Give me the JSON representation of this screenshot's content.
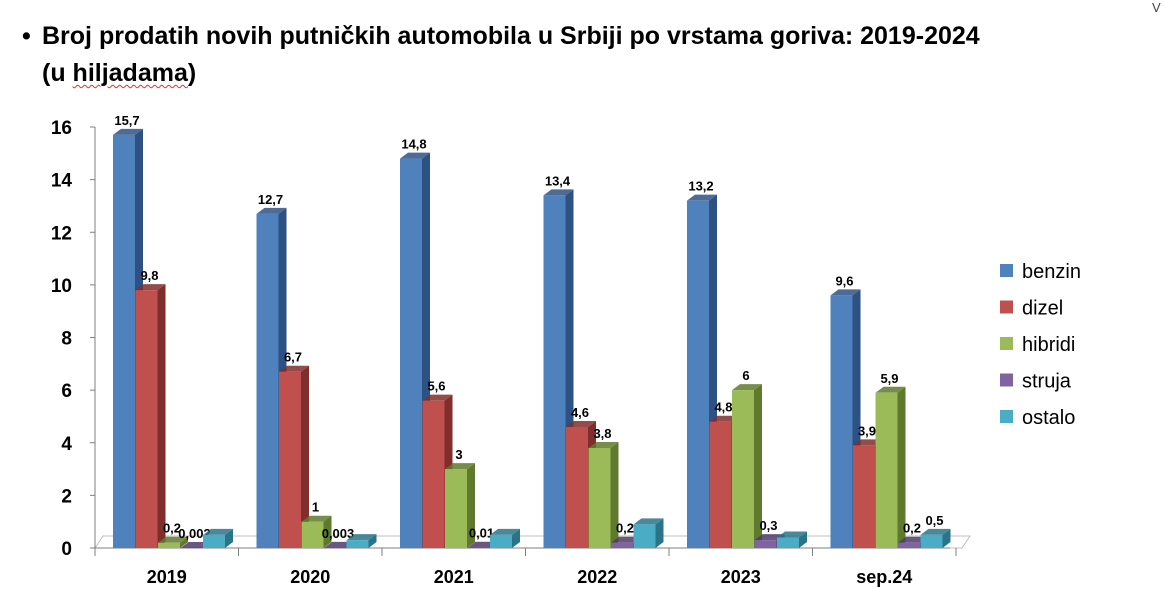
{
  "title": {
    "bullet": "•",
    "line1": "Broj prodatih novih putničkih automobila u Srbiji po vrstama goriva:  2019-2024",
    "line2_open": "(u ",
    "line2_word": "hiljadama",
    "line2_close": ")"
  },
  "corner_mark": "V",
  "chart_data": {
    "type": "bar",
    "title": "Broj prodatih novih putničkih automobila u Srbiji po vrstama goriva: 2019-2024 (u hiljadama)",
    "xlabel": "",
    "ylabel": "",
    "ylim": [
      0,
      16
    ],
    "yticks": [
      "0",
      "2",
      "4",
      "6",
      "8",
      "10",
      "12",
      "14",
      "16"
    ],
    "categories": [
      "2019",
      "2020",
      "2021",
      "2022",
      "2023",
      "sep.24"
    ],
    "legend_position": "right",
    "grid": false,
    "series": [
      {
        "name": "benzin",
        "color": "#4F81BD",
        "dark": "#2E5183",
        "values": [
          15.7,
          12.7,
          14.8,
          13.4,
          13.2,
          9.6
        ],
        "labels": [
          "15,7",
          "12,7",
          "14,8",
          "13,4",
          "13,2",
          "9,6"
        ]
      },
      {
        "name": "dizel",
        "color": "#C0504D",
        "dark": "#7F2E2C",
        "values": [
          9.8,
          6.7,
          5.6,
          4.6,
          4.8,
          3.9
        ],
        "labels": [
          "9,8",
          "6,7",
          "5,6",
          "4,6",
          "4,8",
          "3,9"
        ]
      },
      {
        "name": "hibridi",
        "color": "#9BBB59",
        "dark": "#5F7A2C",
        "values": [
          0.2,
          1,
          3,
          3.8,
          6,
          5.9
        ],
        "labels": [
          "0,2",
          "1",
          "3",
          "3,8",
          "6",
          "5,9"
        ]
      },
      {
        "name": "struja",
        "color": "#8064A2",
        "dark": "#4E3B68",
        "values": [
          0.002,
          0.003,
          0.01,
          0.2,
          0.3,
          0.2
        ],
        "labels": [
          "0,002",
          "0,003",
          "0,01",
          "0,2",
          "0,3",
          "0,2"
        ]
      },
      {
        "name": "ostalo",
        "color": "#4BACC6",
        "dark": "#2A7488",
        "values": [
          0.5,
          0.3,
          0.5,
          0.9,
          0.4,
          0.5
        ],
        "labels": [
          "",
          "",
          "",
          "",
          "",
          "0,5"
        ]
      }
    ]
  }
}
